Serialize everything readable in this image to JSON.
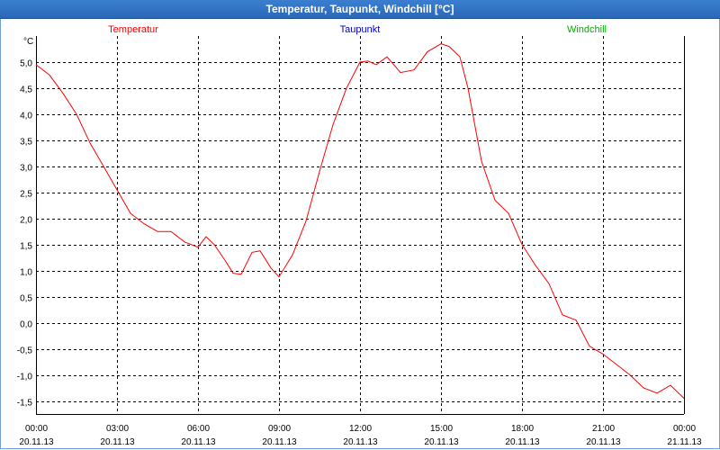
{
  "window": {
    "title": "Temperatur, Taupunkt, Windchill [°C]"
  },
  "colors": {
    "temperatur": "#ff0000",
    "taupunkt": "#0000c0",
    "windchill": "#00b000",
    "grid": "#000000"
  },
  "chart_data": {
    "type": "line",
    "title": "Temperatur, Taupunkt, Windchill [°C]",
    "ylabel": "°C",
    "ylim": [
      -1.75,
      5.5
    ],
    "y_ticks": [
      "5,0",
      "4,5",
      "4,0",
      "3,5",
      "3,0",
      "2,5",
      "2,0",
      "1,5",
      "1,0",
      "0,5",
      "0,0",
      "-0,5",
      "-1,0",
      "-1,5"
    ],
    "y_tick_values": [
      5.0,
      4.5,
      4.0,
      3.5,
      3.0,
      2.5,
      2.0,
      1.5,
      1.0,
      0.5,
      0.0,
      -0.5,
      -1.0,
      -1.5
    ],
    "x_ticks": [
      {
        "time": "00:00",
        "date": "20.11.13"
      },
      {
        "time": "03:00",
        "date": "20.11.13"
      },
      {
        "time": "06:00",
        "date": "20.11.13"
      },
      {
        "time": "09:00",
        "date": "20.11.13"
      },
      {
        "time": "12:00",
        "date": "20.11.13"
      },
      {
        "time": "15:00",
        "date": "20.11.13"
      },
      {
        "time": "18:00",
        "date": "20.11.13"
      },
      {
        "time": "21:00",
        "date": "20.11.13"
      },
      {
        "time": "00:00",
        "date": "21.11.13"
      }
    ],
    "legend": [
      {
        "name": "Temperatur",
        "color": "#ff0000"
      },
      {
        "name": "Taupunkt",
        "color": "#0000c0"
      },
      {
        "name": "Windchill",
        "color": "#00b000"
      }
    ],
    "grid": true,
    "series": [
      {
        "name": "Temperatur",
        "x_hours": [
          0,
          0.5,
          1,
          1.5,
          2,
          2.5,
          3,
          3.5,
          4,
          4.5,
          5,
          5.5,
          6,
          6.3,
          6.6,
          7,
          7.3,
          7.6,
          8,
          8.3,
          8.7,
          9,
          9.5,
          10,
          10.5,
          11,
          11.5,
          12,
          12.3,
          12.6,
          13,
          13.5,
          14,
          14.5,
          15,
          15.3,
          15.7,
          16,
          16.5,
          17,
          17.5,
          18,
          18.5,
          19,
          19.5,
          20,
          20.5,
          21,
          21.5,
          22,
          22.5,
          23,
          23.5,
          24
        ],
        "y": [
          4.95,
          4.75,
          4.4,
          4.0,
          3.45,
          3.0,
          2.55,
          2.1,
          1.9,
          1.75,
          1.75,
          1.55,
          1.45,
          1.65,
          1.5,
          1.2,
          0.95,
          0.93,
          1.35,
          1.38,
          1.05,
          0.88,
          1.3,
          1.95,
          2.9,
          3.8,
          4.5,
          5.0,
          5.02,
          4.95,
          5.1,
          4.8,
          4.85,
          5.2,
          5.35,
          5.3,
          5.1,
          4.5,
          3.1,
          2.35,
          2.1,
          1.5,
          1.1,
          0.75,
          0.15,
          0.05,
          -0.45,
          -0.6,
          -0.8,
          -1.0,
          -1.25,
          -1.35,
          -1.2,
          -1.45
        ]
      }
    ]
  }
}
